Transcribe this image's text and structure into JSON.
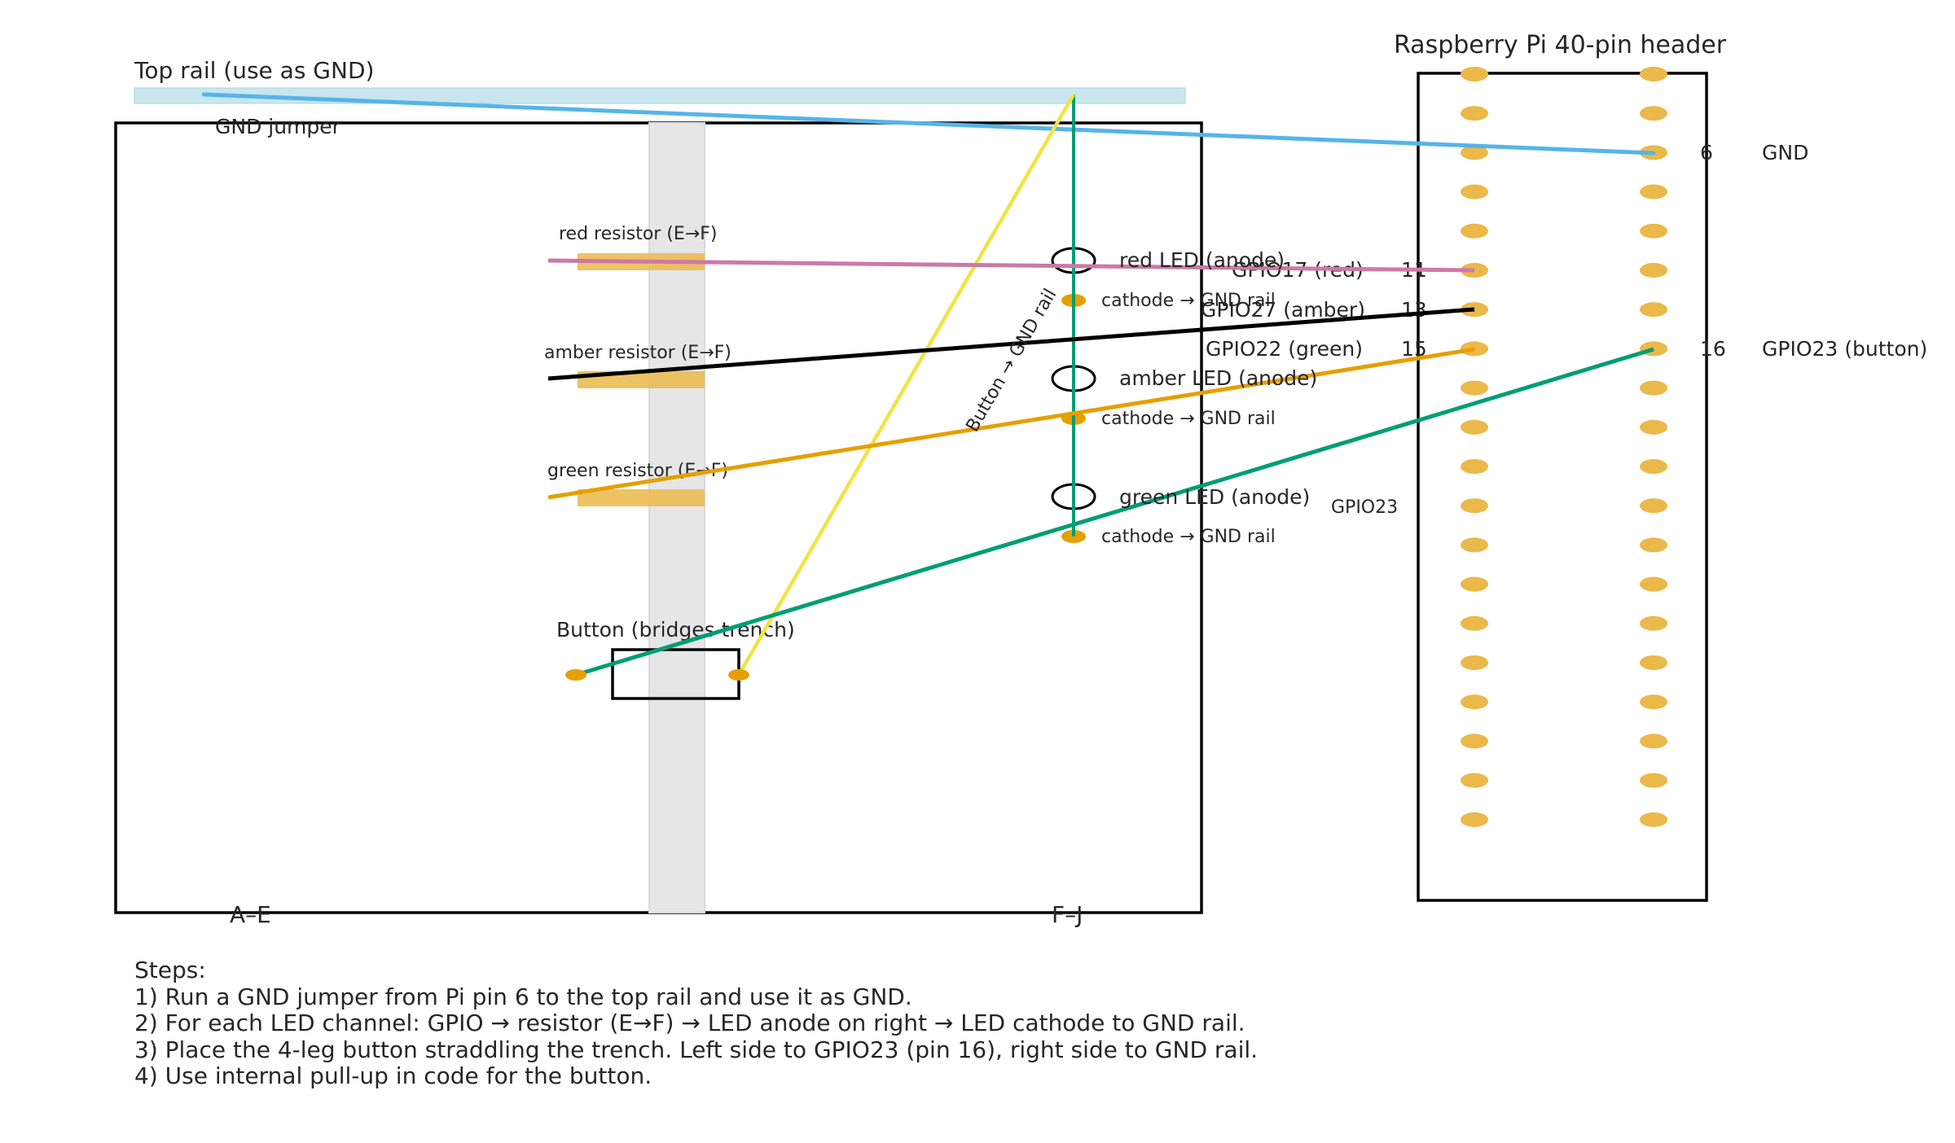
{
  "top_rail": {
    "label": "Top rail (use as GND)",
    "color": "#c9e6ee",
    "gnd_jumper_label": "GND jumper"
  },
  "breadboard": {
    "left_columns_label": "A–E",
    "right_columns_label": "F–J",
    "trench_color": "#e6e6e6"
  },
  "leds": [
    {
      "name": "red",
      "resistor_label": "red resistor (E→F)",
      "anode_label": "red LED (anode)",
      "cathode_label": "cathode → GND rail",
      "wire_color": "#cc79a7"
    },
    {
      "name": "amber",
      "resistor_label": "amber resistor (E→F)",
      "anode_label": "amber LED (anode)",
      "cathode_label": "cathode → GND rail",
      "wire_color": "#000000"
    },
    {
      "name": "green",
      "resistor_label": "green resistor (E→F)",
      "anode_label": "green LED (anode)",
      "cathode_label": "cathode → GND rail",
      "wire_color": "#e69f00"
    }
  ],
  "button": {
    "label": "Button (bridges trench)",
    "gnd_wire_label": "Button → GND rail",
    "gpio_wire_label": "GPIO23",
    "gpio_wire_color": "#009e73",
    "gnd_wire_color": "#f0e442"
  },
  "pi_header": {
    "title": "Raspberry Pi 40-pin header",
    "pin_color": "#ebb84a",
    "pins_per_column": 20,
    "labeled_pins": [
      {
        "number": "6",
        "label": "GND",
        "side": "right"
      },
      {
        "number": "11",
        "label": "GPIO17 (red)",
        "side": "left"
      },
      {
        "number": "13",
        "label": "GPIO27 (amber)",
        "side": "left"
      },
      {
        "number": "15",
        "label": "GPIO22 (green)",
        "side": "left"
      },
      {
        "number": "16",
        "label": "GPIO23 (button)",
        "side": "right"
      }
    ]
  },
  "gnd_wire_color": "#56b4e9",
  "trunk_wire_color": "#009e73",
  "steps": {
    "heading": "Steps:",
    "lines": [
      "1) Run a GND jumper from Pi pin 6 to the top rail and use it as GND.",
      "2) For each LED channel: GPIO → resistor (E→F) → LED anode on right → LED cathode to GND rail.",
      "3) Place the 4-leg button straddling the trench. Left side to GPIO23 (pin 16), right side to GND rail.",
      "4) Use internal pull-up in code for the button."
    ]
  }
}
